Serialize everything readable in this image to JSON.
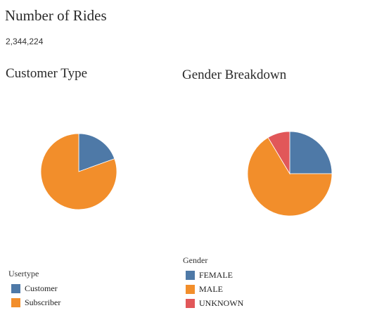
{
  "header": {
    "title": "Number of Rides",
    "value": "2,344,224"
  },
  "chart_data": [
    {
      "type": "pie",
      "title": "Customer Type",
      "legend_title": "Usertype",
      "legend_position": "bottom-left",
      "slices": [
        {
          "label": "Customer",
          "value": 19.5,
          "color": "#4e79a7"
        },
        {
          "label": "Subscriber",
          "value": 80.5,
          "color": "#f28e2b"
        }
      ]
    },
    {
      "type": "pie",
      "title": "Gender Breakdown",
      "legend_title": "Gender",
      "legend_position": "bottom-left",
      "slices": [
        {
          "label": "FEMALE",
          "value": 25,
          "color": "#4e79a7"
        },
        {
          "label": "MALE",
          "value": 66.4,
          "color": "#f28e2b"
        },
        {
          "label": "UNKNOWN",
          "value": 8.6,
          "color": "#e15759"
        }
      ]
    }
  ]
}
